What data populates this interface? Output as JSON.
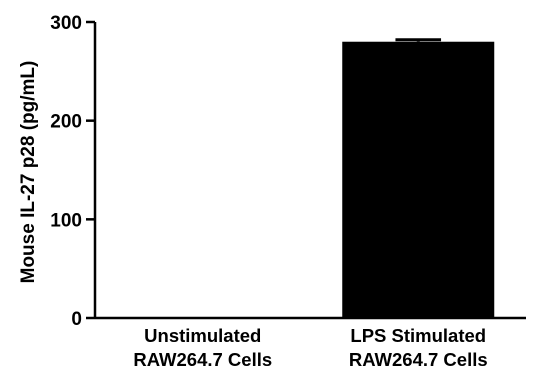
{
  "chart_data": {
    "type": "bar",
    "title": "",
    "xlabel": "",
    "ylabel": "Mouse IL-27 p28 (pg/mL)",
    "ylim": [
      0,
      300
    ],
    "yticks": [
      "0",
      "100",
      "200",
      "300"
    ],
    "categories": [
      [
        "Unstimulated",
        "RAW264.7 Cells"
      ],
      [
        "LPS Stimulated",
        "RAW264.7 Cells"
      ]
    ],
    "values": [
      0,
      280
    ],
    "errors": [
      0,
      2
    ],
    "grid": false,
    "legend": "none",
    "colors": {
      "bar": "#000000",
      "axis": "#000000"
    }
  }
}
